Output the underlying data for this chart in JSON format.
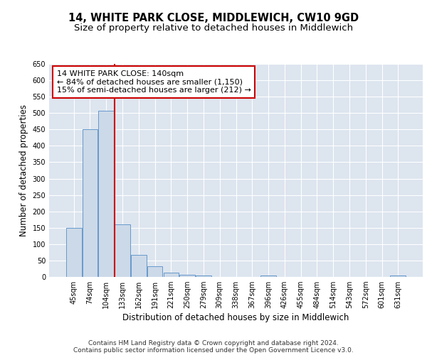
{
  "title": "14, WHITE PARK CLOSE, MIDDLEWICH, CW10 9GD",
  "subtitle": "Size of property relative to detached houses in Middlewich",
  "xlabel": "Distribution of detached houses by size in Middlewich",
  "ylabel": "Number of detached properties",
  "categories": [
    "45sqm",
    "74sqm",
    "104sqm",
    "133sqm",
    "162sqm",
    "191sqm",
    "221sqm",
    "250sqm",
    "279sqm",
    "309sqm",
    "338sqm",
    "367sqm",
    "396sqm",
    "426sqm",
    "455sqm",
    "484sqm",
    "514sqm",
    "543sqm",
    "572sqm",
    "601sqm",
    "631sqm"
  ],
  "values": [
    150,
    450,
    508,
    160,
    68,
    32,
    12,
    6,
    5,
    0,
    0,
    0,
    5,
    0,
    0,
    0,
    0,
    0,
    0,
    0,
    5
  ],
  "bar_color": "#ccd9e8",
  "bar_edge_color": "#6699cc",
  "red_line_x": 2.5,
  "red_line_color": "#cc0000",
  "annotation_text": "14 WHITE PARK CLOSE: 140sqm\n← 84% of detached houses are smaller (1,150)\n15% of semi-detached houses are larger (212) →",
  "annotation_box_color": "#ffffff",
  "annotation_box_edge": "#cc0000",
  "ylim": [
    0,
    650
  ],
  "yticks": [
    0,
    50,
    100,
    150,
    200,
    250,
    300,
    350,
    400,
    450,
    500,
    550,
    600,
    650
  ],
  "background_color": "#dde5ef",
  "grid_color": "#ffffff",
  "footer_line1": "Contains HM Land Registry data © Crown copyright and database right 2024.",
  "footer_line2": "Contains public sector information licensed under the Open Government Licence v3.0.",
  "title_fontsize": 10.5,
  "subtitle_fontsize": 9.5,
  "tick_fontsize": 7,
  "ylabel_fontsize": 8.5,
  "xlabel_fontsize": 8.5,
  "annotation_fontsize": 8,
  "footer_fontsize": 6.5
}
